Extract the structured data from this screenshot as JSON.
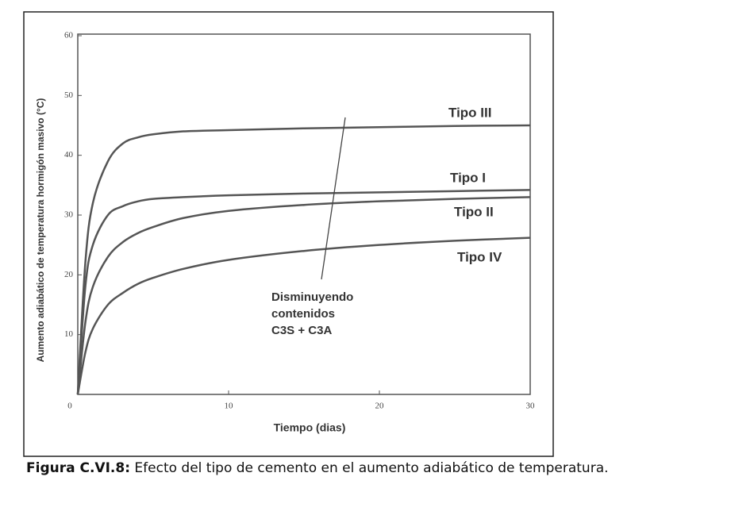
{
  "chart_data": {
    "type": "line",
    "xlabel": "Tiempo (dias)",
    "ylabel": "Aumento adiabático de temperatura hormigón masivo (°C)",
    "x": [
      0,
      0.5,
      1,
      2,
      3,
      4,
      5,
      7,
      10,
      15,
      20,
      25,
      30
    ],
    "series": [
      {
        "name": "Tipo III",
        "color": "#555555",
        "values": [
          0,
          22,
          32,
          39,
          42,
          43,
          43.5,
          44,
          44.2,
          44.5,
          44.7,
          44.9,
          45
        ]
      },
      {
        "name": "Tipo I",
        "color": "#555555",
        "values": [
          0,
          18,
          25,
          30,
          31.5,
          32.3,
          32.7,
          33,
          33.3,
          33.6,
          33.8,
          34,
          34.2
        ]
      },
      {
        "name": "Tipo II",
        "color": "#555555",
        "values": [
          0,
          12,
          18,
          23,
          25.5,
          27,
          28,
          29.5,
          30.7,
          31.7,
          32.3,
          32.7,
          33
        ]
      },
      {
        "name": "Tipo IV",
        "color": "#555555",
        "values": [
          0,
          7,
          11,
          15,
          17,
          18.5,
          19.5,
          21,
          22.5,
          24,
          25,
          25.7,
          26.2
        ]
      }
    ],
    "annotation": [
      "Disminuyendo",
      "contenidos",
      "C3S + C3A"
    ],
    "xlim": [
      0,
      30
    ],
    "xticks": [
      0,
      10,
      20,
      30
    ],
    "ylim": [
      0,
      60
    ],
    "yticks": [
      10,
      20,
      30,
      40,
      50,
      60
    ]
  },
  "caption": {
    "label": "Figura C.VI.8:",
    "text": "Efecto del tipo de cemento en el aumento adiabático de temperatura."
  }
}
